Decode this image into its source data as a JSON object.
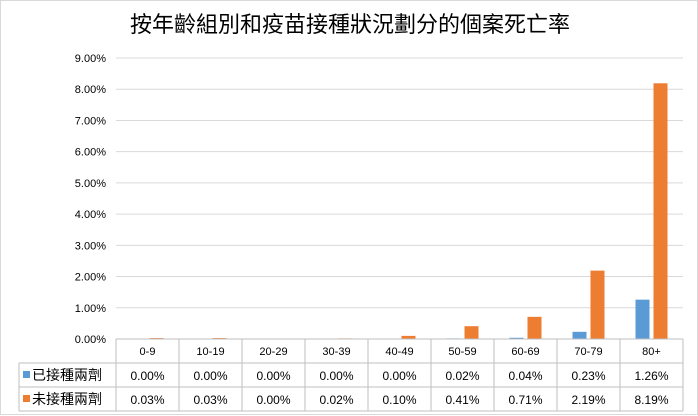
{
  "chart_data": {
    "type": "bar",
    "title": "按年齡組別和疫苗接種狀況劃分的個案死亡率",
    "categories": [
      "0-9",
      "10-19",
      "20-29",
      "30-39",
      "40-49",
      "50-59",
      "60-69",
      "70-79",
      "80+"
    ],
    "series": [
      {
        "name": "已接種兩劑",
        "color": "#5b9bd5",
        "values": [
          0.0,
          0.0,
          0.0,
          0.0,
          0.0,
          0.02,
          0.04,
          0.23,
          1.26
        ],
        "labels": [
          "0.00%",
          "0.00%",
          "0.00%",
          "0.00%",
          "0.00%",
          "0.02%",
          "0.04%",
          "0.23%",
          "1.26%"
        ]
      },
      {
        "name": "未接種兩劑",
        "color": "#ed7d31",
        "values": [
          0.03,
          0.03,
          0.0,
          0.02,
          0.1,
          0.41,
          0.71,
          2.19,
          8.19
        ],
        "labels": [
          "0.03%",
          "0.03%",
          "0.00%",
          "0.02%",
          "0.10%",
          "0.41%",
          "0.71%",
          "2.19%",
          "8.19%"
        ]
      }
    ],
    "ylim": [
      0,
      9
    ],
    "yticks": [
      "0.00%",
      "1.00%",
      "2.00%",
      "3.00%",
      "4.00%",
      "5.00%",
      "6.00%",
      "7.00%",
      "8.00%",
      "9.00%"
    ],
    "grid": true,
    "legend": "data-table"
  }
}
